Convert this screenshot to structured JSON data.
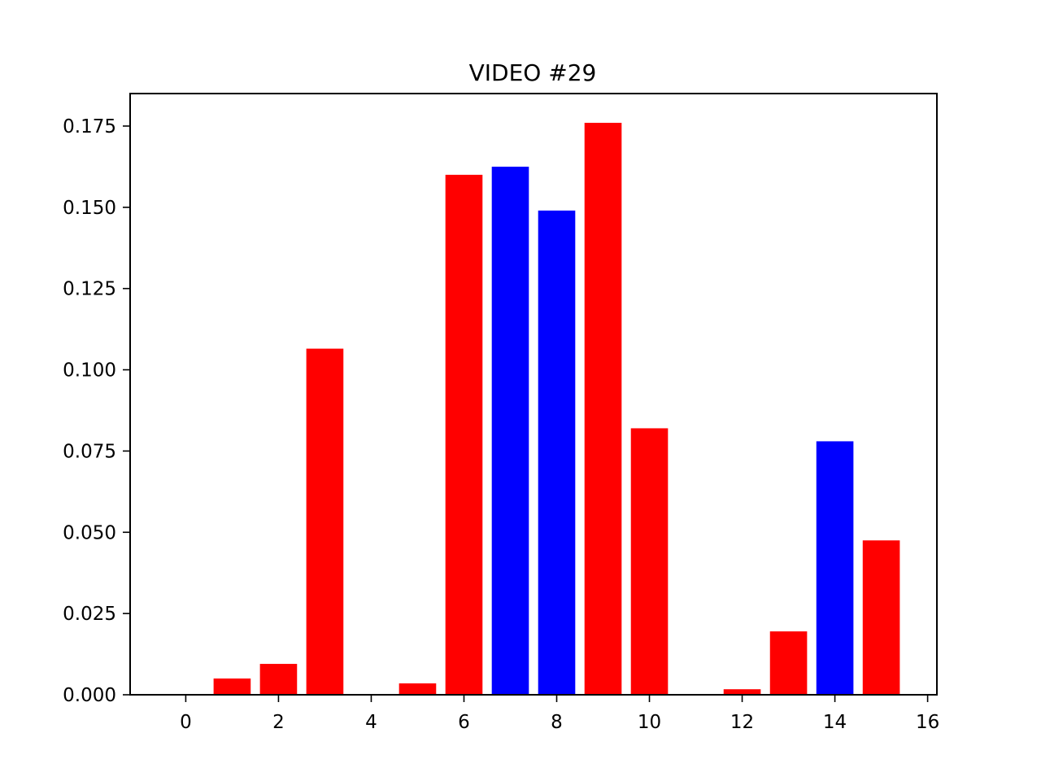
{
  "chart_data": {
    "type": "bar",
    "title": "VIDEO #29",
    "xlabel": "",
    "ylabel": "",
    "x": [
      0,
      1,
      2,
      3,
      4,
      5,
      6,
      7,
      8,
      9,
      10,
      11,
      12,
      13,
      14,
      15
    ],
    "values": [
      0.0,
      0.005,
      0.0095,
      0.1065,
      0.0,
      0.0035,
      0.16,
      0.1625,
      0.149,
      0.176,
      0.082,
      0.0,
      0.0017,
      0.0195,
      0.078,
      0.0475
    ],
    "bar_colors": [
      "#ff0000",
      "#ff0000",
      "#ff0000",
      "#ff0000",
      "#ff0000",
      "#ff0000",
      "#ff0000",
      "#0000ff",
      "#0000ff",
      "#ff0000",
      "#ff0000",
      "#ff0000",
      "#ff0000",
      "#ff0000",
      "#0000ff",
      "#ff0000"
    ],
    "xlim": [
      -1.2,
      16.2
    ],
    "ylim": [
      0,
      0.185
    ],
    "xticks": [
      0,
      2,
      4,
      6,
      8,
      10,
      12,
      14,
      16
    ],
    "xtick_labels": [
      "0",
      "2",
      "4",
      "6",
      "8",
      "10",
      "12",
      "14",
      "16"
    ],
    "yticks": [
      0.0,
      0.025,
      0.05,
      0.075,
      0.1,
      0.125,
      0.15,
      0.175
    ],
    "ytick_labels": [
      "0.000",
      "0.025",
      "0.050",
      "0.075",
      "0.100",
      "0.125",
      "0.150",
      "0.175"
    ],
    "bar_width": 0.8,
    "grid": false,
    "legend": "none"
  }
}
